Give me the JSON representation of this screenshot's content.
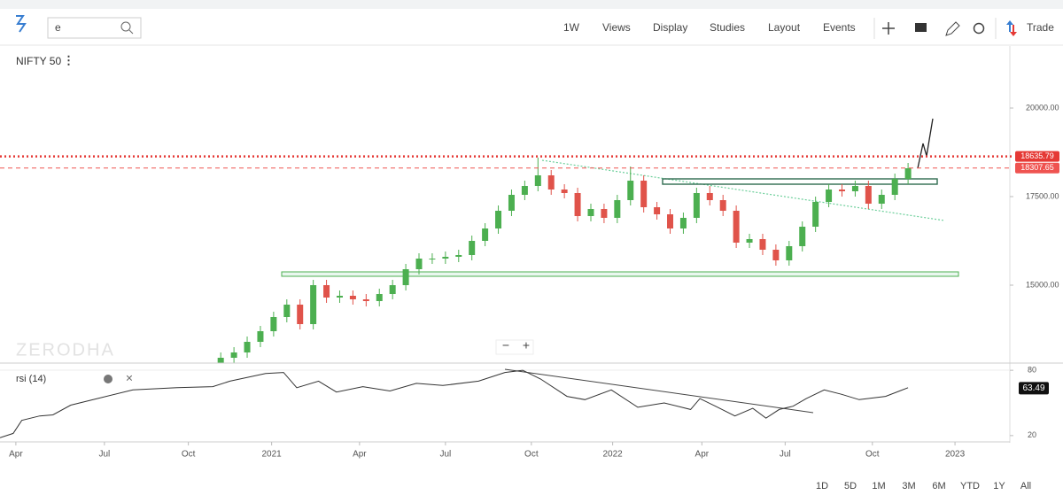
{
  "toolbar": {
    "search": "e",
    "interval": "1W",
    "menus": [
      "Views",
      "Display",
      "Studies",
      "Layout",
      "Events"
    ],
    "trade": "Trade"
  },
  "chart_data": [
    {
      "type": "candlestick",
      "title": "NIFTY 50",
      "watermark": "ZERODHA",
      "up_color": "#4caf50",
      "down_color": "#e0534a",
      "xlim": [
        -2.4,
        150.4
      ],
      "x": [
        31,
        33,
        35,
        37,
        39,
        41,
        43,
        45,
        47,
        49,
        51,
        53,
        55,
        57,
        59,
        61,
        63,
        65,
        67,
        69,
        71,
        73,
        75,
        77,
        79,
        81,
        83,
        85,
        87,
        89,
        91,
        93,
        95,
        97,
        99,
        101,
        103,
        105,
        107,
        109,
        111,
        113,
        115,
        117,
        119,
        121,
        123,
        125,
        127,
        129,
        131,
        133,
        135
      ],
      "open": [
        12800,
        12950,
        13100,
        13400,
        13700,
        14100,
        14450,
        13900,
        15000,
        14650,
        14700,
        14600,
        14550,
        14750,
        15000,
        15450,
        15750,
        15750,
        15800,
        15850,
        16250,
        16600,
        17100,
        17550,
        17800,
        18100,
        17700,
        17600,
        16950,
        17150,
        16900,
        17400,
        17950,
        17200,
        17000,
        16600,
        16900,
        17600,
        17400,
        17100,
        16200,
        16300,
        16000,
        15700,
        16100,
        16650,
        17350,
        17700,
        17650,
        17800,
        17300,
        17550,
        18000
      ],
      "high": [
        13100,
        13250,
        13550,
        13850,
        14250,
        14600,
        14600,
        15150,
        15150,
        14850,
        14850,
        14750,
        14900,
        15150,
        15600,
        15900,
        15900,
        15950,
        16000,
        16400,
        16750,
        17250,
        17700,
        17950,
        18600,
        18250,
        17850,
        17750,
        17300,
        17300,
        17550,
        18350,
        18100,
        17350,
        17150,
        17050,
        17750,
        17800,
        17550,
        17250,
        16450,
        16450,
        16150,
        16250,
        16800,
        17500,
        17850,
        17850,
        17950,
        17950,
        17700,
        18150,
        18450
      ],
      "low": [
        12650,
        12800,
        12950,
        13250,
        13550,
        13950,
        13750,
        13750,
        14500,
        14500,
        14450,
        14400,
        14400,
        14600,
        14850,
        15300,
        15600,
        15600,
        15650,
        15700,
        16100,
        16450,
        16950,
        17400,
        17650,
        17550,
        17450,
        16800,
        16800,
        16750,
        16750,
        17250,
        17050,
        16850,
        16450,
        16450,
        16750,
        17250,
        16950,
        16050,
        16050,
        15850,
        15550,
        15550,
        15950,
        16500,
        17200,
        17500,
        17500,
        17150,
        17150,
        17400,
        17850
      ],
      "close": [
        12950,
        13100,
        13400,
        13700,
        14100,
        14450,
        13900,
        15000,
        14650,
        14700,
        14600,
        14550,
        14750,
        15000,
        15450,
        15750,
        15750,
        15800,
        15850,
        16250,
        16600,
        17100,
        17550,
        17800,
        18100,
        17700,
        17600,
        16950,
        17150,
        16900,
        17400,
        17950,
        17200,
        17000,
        16600,
        16900,
        17600,
        17400,
        17100,
        16200,
        16300,
        16000,
        15700,
        16100,
        16650,
        17350,
        17700,
        17650,
        17800,
        17300,
        17550,
        18000,
        18300
      ],
      "ylim": [
        12800,
        21750
      ],
      "yticks": [
        {
          "value": 15000,
          "label": "15000.00"
        },
        {
          "value": 17500,
          "label": "17500.00"
        },
        {
          "value": 20000,
          "label": "20000.00"
        }
      ],
      "levels": [
        {
          "value": 18635.79,
          "label": "18635.79",
          "style": "dotted",
          "color": "#e53935"
        },
        {
          "value": 18307.65,
          "label": "18307.65",
          "style": "dashed",
          "color": "#ef5350"
        }
      ]
    },
    {
      "type": "line",
      "title": "rsi (14)",
      "xlim": [
        -2.4,
        150.4
      ],
      "x": [
        -2.4,
        -0.4,
        0.9,
        3.6,
        5.6,
        8.3,
        12.3,
        17.7,
        24.4,
        29.8,
        32.4,
        37.8,
        40.5,
        42.5,
        45.8,
        48.5,
        52.5,
        56.6,
        60.6,
        64.6,
        70,
        74,
        76.7,
        79.4,
        83.4,
        86.1,
        90.1,
        94.1,
        98.1,
        102.1,
        103.5,
        106.2,
        108.8,
        111.5,
        113.5,
        115.5,
        117.6,
        119.6,
        122.3,
        124.9,
        127.6,
        131.6,
        135
      ],
      "series": [
        {
          "color": "#333333",
          "values": [
            18,
            22,
            34,
            38,
            39,
            48,
            54,
            62,
            64,
            65,
            70,
            77,
            78,
            64,
            70,
            60,
            65,
            61,
            68,
            66,
            70,
            78,
            80,
            72,
            56,
            53,
            62,
            46,
            50,
            44,
            54,
            46,
            38,
            45,
            36,
            44,
            47,
            54,
            62,
            58,
            53,
            56,
            64
          ]
        }
      ],
      "last_value": {
        "value": 63.49,
        "label": "63.49"
      },
      "ylim": [
        15,
        85
      ],
      "yticks": [
        20,
        80
      ],
      "xticks": [
        {
          "value": 0,
          "label": "Apr"
        },
        {
          "value": 13.4,
          "label": "Jul"
        },
        {
          "value": 26.1,
          "label": "Oct"
        },
        {
          "value": 38.7,
          "label": "2021"
        },
        {
          "value": 52,
          "label": "Apr"
        },
        {
          "value": 65,
          "label": "Jul"
        },
        {
          "value": 78,
          "label": "Oct"
        },
        {
          "value": 90.3,
          "label": "2022"
        },
        {
          "value": 103.8,
          "label": "Apr"
        },
        {
          "value": 116.4,
          "label": "Jul"
        },
        {
          "value": 129.6,
          "label": "Oct"
        },
        {
          "value": 142.1,
          "label": "2023"
        }
      ]
    }
  ],
  "ranges": [
    "1D",
    "5D",
    "1M",
    "3M",
    "6M",
    "YTD",
    "1Y",
    "All"
  ]
}
